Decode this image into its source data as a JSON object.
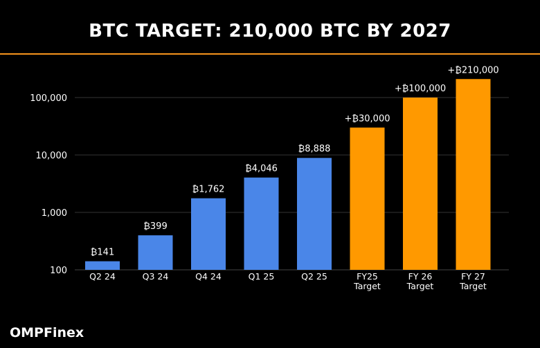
{
  "header": {
    "title": "BTC TARGET: 210,000 BTC BY 2027"
  },
  "brand": {
    "name": "OMPFinex"
  },
  "colors": {
    "actual": "#4a86e8",
    "target": "#ff9900",
    "accent_rule": "#f7941d",
    "background": "#000000",
    "gridline": "#333333"
  },
  "chart_data": {
    "type": "bar",
    "title": "BTC TARGET: 210,000 BTC BY 2027",
    "yscale": "log",
    "ylim": [
      100,
      210000
    ],
    "yticks": [
      100,
      1000,
      10000,
      100000
    ],
    "ytick_labels": [
      "100",
      "1,000",
      "10,000",
      "100,000"
    ],
    "grid": true,
    "legend": "none",
    "categories": [
      [
        "Q2 24"
      ],
      [
        "Q3 24"
      ],
      [
        "Q4 24"
      ],
      [
        "Q1 25"
      ],
      [
        "Q2 25"
      ],
      [
        "FY25",
        "Target"
      ],
      [
        "FY 26",
        "Target"
      ],
      [
        "FY 27",
        "Target"
      ]
    ],
    "values": [
      141,
      399,
      1762,
      4046,
      8888,
      30000,
      100000,
      210000
    ],
    "data_labels": [
      "₿141",
      "₿399",
      "₿1,762",
      "₿4,046",
      "₿8,888",
      "+₿30,000",
      "+₿100,000",
      "+₿210,000"
    ],
    "bar_kind": [
      "actual",
      "actual",
      "actual",
      "actual",
      "actual",
      "target",
      "target",
      "target"
    ]
  }
}
